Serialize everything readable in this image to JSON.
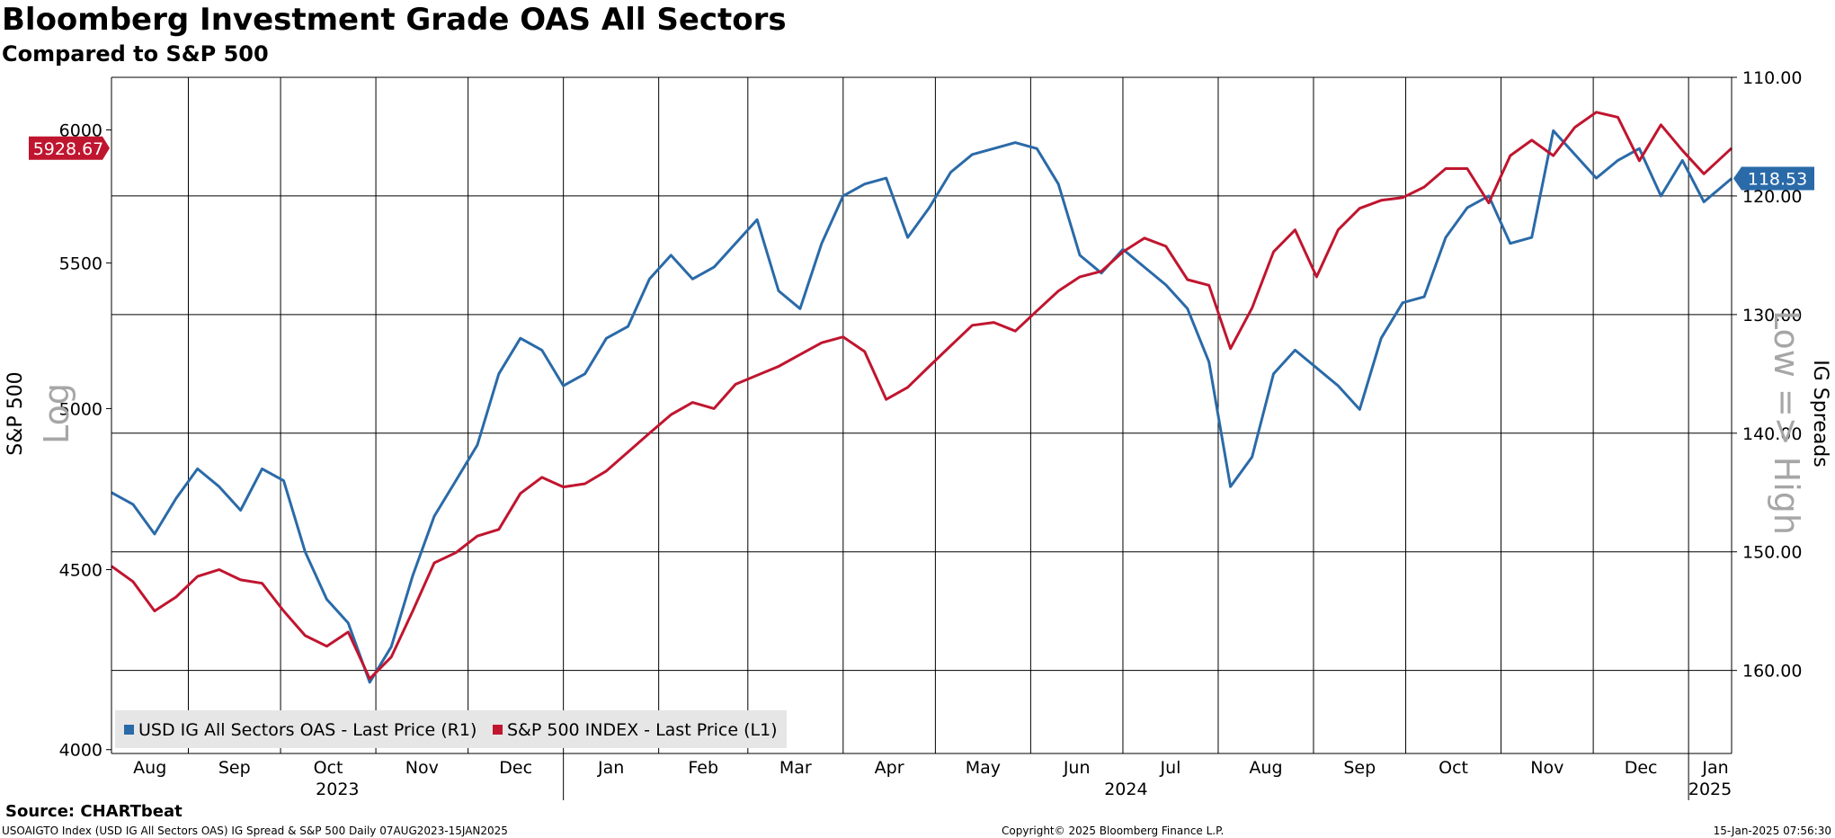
{
  "header": {
    "title": "Bloomberg Investment Grade OAS All Sectors",
    "subtitle": "Compared to S&P 500"
  },
  "footer": {
    "source": "Source: CHARTbeat",
    "description": "USOAIGTO Index (USD IG All Sectors OAS) IG Spread & S&P 500  Daily 07AUG2023-15JAN2025",
    "copyright": "Copyright© 2025 Bloomberg Finance L.P.",
    "timestamp": "15-Jan-2025 07:56:30"
  },
  "chart_data": {
    "type": "line",
    "title": "Bloomberg Investment Grade OAS All Sectors",
    "subtitle": "Compared to S&P 500",
    "x_range": [
      "2023-08-07",
      "2025-01-15"
    ],
    "x_month_labels": [
      "Aug",
      "Sep",
      "Oct",
      "Nov",
      "Dec",
      "Jan",
      "Feb",
      "Mar",
      "Apr",
      "May",
      "Jun",
      "Jul",
      "Aug",
      "Sep",
      "Oct",
      "Nov",
      "Dec",
      "Jan"
    ],
    "x_year_labels": [
      "2023",
      "2024",
      "2025"
    ],
    "left_axis": {
      "label": "S&P 500",
      "watermark": "Log",
      "scale": "log",
      "ticks": [
        "4000",
        "4500",
        "5000",
        "5500",
        "6000"
      ],
      "range": [
        3990,
        6210
      ]
    },
    "right_axis": {
      "label": "IG Spreads",
      "watermark": "Low => High",
      "inverted": true,
      "ticks": [
        "110.00",
        "120.00",
        "130.00",
        "140.00",
        "150.00",
        "160.00"
      ],
      "range": [
        110,
        167
      ]
    },
    "grid": true,
    "legend_position": "bottom-left",
    "series": [
      {
        "name": "USD IG All Sectors OAS - Last Price (R1)",
        "axis": "right",
        "color": "#2a6aa8",
        "last_value_label": "118.53",
        "points": [
          [
            "2023-08-07",
            145.0
          ],
          [
            "2023-08-14",
            146.0
          ],
          [
            "2023-08-21",
            148.5
          ],
          [
            "2023-08-28",
            145.5
          ],
          [
            "2023-09-04",
            143.0
          ],
          [
            "2023-09-11",
            144.5
          ],
          [
            "2023-09-18",
            146.5
          ],
          [
            "2023-09-25",
            143.0
          ],
          [
            "2023-10-02",
            144.0
          ],
          [
            "2023-10-09",
            150.0
          ],
          [
            "2023-10-16",
            154.0
          ],
          [
            "2023-10-23",
            156.0
          ],
          [
            "2023-10-30",
            161.0
          ],
          [
            "2023-11-06",
            158.0
          ],
          [
            "2023-11-13",
            152.0
          ],
          [
            "2023-11-20",
            147.0
          ],
          [
            "2023-11-27",
            144.0
          ],
          [
            "2023-12-04",
            141.0
          ],
          [
            "2023-12-11",
            135.0
          ],
          [
            "2023-12-18",
            132.0
          ],
          [
            "2023-12-25",
            133.0
          ],
          [
            "2024-01-01",
            136.0
          ],
          [
            "2024-01-08",
            135.0
          ],
          [
            "2024-01-15",
            132.0
          ],
          [
            "2024-01-22",
            131.0
          ],
          [
            "2024-01-29",
            127.0
          ],
          [
            "2024-02-05",
            125.0
          ],
          [
            "2024-02-12",
            127.0
          ],
          [
            "2024-02-19",
            126.0
          ],
          [
            "2024-02-26",
            124.0
          ],
          [
            "2024-03-04",
            122.0
          ],
          [
            "2024-03-11",
            128.0
          ],
          [
            "2024-03-18",
            129.5
          ],
          [
            "2024-03-25",
            124.0
          ],
          [
            "2024-04-01",
            120.0
          ],
          [
            "2024-04-08",
            119.0
          ],
          [
            "2024-04-15",
            118.5
          ],
          [
            "2024-04-22",
            123.5
          ],
          [
            "2024-04-29",
            121.0
          ],
          [
            "2024-05-06",
            118.0
          ],
          [
            "2024-05-13",
            116.5
          ],
          [
            "2024-05-20",
            116.0
          ],
          [
            "2024-05-27",
            115.5
          ],
          [
            "2024-06-03",
            116.0
          ],
          [
            "2024-06-10",
            119.0
          ],
          [
            "2024-06-17",
            125.0
          ],
          [
            "2024-06-24",
            126.5
          ],
          [
            "2024-07-01",
            124.5
          ],
          [
            "2024-07-08",
            126.0
          ],
          [
            "2024-07-15",
            127.5
          ],
          [
            "2024-07-22",
            129.5
          ],
          [
            "2024-07-29",
            134.0
          ],
          [
            "2024-08-05",
            144.5
          ],
          [
            "2024-08-12",
            142.0
          ],
          [
            "2024-08-19",
            135.0
          ],
          [
            "2024-08-26",
            133.0
          ],
          [
            "2024-09-02",
            134.5
          ],
          [
            "2024-09-09",
            136.0
          ],
          [
            "2024-09-16",
            138.0
          ],
          [
            "2024-09-23",
            132.0
          ],
          [
            "2024-09-30",
            129.0
          ],
          [
            "2024-10-07",
            128.5
          ],
          [
            "2024-10-14",
            123.5
          ],
          [
            "2024-10-21",
            121.0
          ],
          [
            "2024-10-28",
            120.0
          ],
          [
            "2024-11-04",
            124.0
          ],
          [
            "2024-11-11",
            123.5
          ],
          [
            "2024-11-18",
            114.5
          ],
          [
            "2024-11-25",
            116.5
          ],
          [
            "2024-12-02",
            118.5
          ],
          [
            "2024-12-09",
            117.0
          ],
          [
            "2024-12-16",
            116.0
          ],
          [
            "2024-12-23",
            120.0
          ],
          [
            "2024-12-30",
            117.0
          ],
          [
            "2025-01-06",
            120.5
          ],
          [
            "2025-01-15",
            118.53
          ]
        ]
      },
      {
        "name": "S&P 500 INDEX - Last Price (L1)",
        "axis": "left",
        "color": "#c0152f",
        "last_value_label": "5928.67",
        "points": [
          [
            "2023-08-07",
            4510
          ],
          [
            "2023-08-14",
            4465
          ],
          [
            "2023-08-21",
            4380
          ],
          [
            "2023-08-28",
            4420
          ],
          [
            "2023-09-04",
            4480
          ],
          [
            "2023-09-11",
            4500
          ],
          [
            "2023-09-18",
            4470
          ],
          [
            "2023-09-25",
            4460
          ],
          [
            "2023-10-02",
            4380
          ],
          [
            "2023-10-09",
            4310
          ],
          [
            "2023-10-16",
            4280
          ],
          [
            "2023-10-23",
            4320
          ],
          [
            "2023-10-30",
            4190
          ],
          [
            "2023-11-06",
            4250
          ],
          [
            "2023-11-13",
            4380
          ],
          [
            "2023-11-20",
            4520
          ],
          [
            "2023-11-27",
            4550
          ],
          [
            "2023-12-04",
            4600
          ],
          [
            "2023-12-11",
            4620
          ],
          [
            "2023-12-18",
            4730
          ],
          [
            "2023-12-25",
            4780
          ],
          [
            "2024-01-01",
            4750
          ],
          [
            "2024-01-08",
            4760
          ],
          [
            "2024-01-15",
            4800
          ],
          [
            "2024-01-22",
            4860
          ],
          [
            "2024-01-29",
            4920
          ],
          [
            "2024-02-05",
            4980
          ],
          [
            "2024-02-12",
            5020
          ],
          [
            "2024-02-19",
            5000
          ],
          [
            "2024-02-26",
            5080
          ],
          [
            "2024-03-04",
            5110
          ],
          [
            "2024-03-11",
            5140
          ],
          [
            "2024-03-18",
            5180
          ],
          [
            "2024-03-25",
            5220
          ],
          [
            "2024-04-01",
            5240
          ],
          [
            "2024-04-08",
            5190
          ],
          [
            "2024-04-15",
            5030
          ],
          [
            "2024-04-22",
            5070
          ],
          [
            "2024-04-29",
            5140
          ],
          [
            "2024-05-06",
            5210
          ],
          [
            "2024-05-13",
            5280
          ],
          [
            "2024-05-20",
            5290
          ],
          [
            "2024-05-27",
            5260
          ],
          [
            "2024-06-03",
            5330
          ],
          [
            "2024-06-10",
            5400
          ],
          [
            "2024-06-17",
            5450
          ],
          [
            "2024-06-24",
            5470
          ],
          [
            "2024-07-01",
            5540
          ],
          [
            "2024-07-08",
            5590
          ],
          [
            "2024-07-15",
            5560
          ],
          [
            "2024-07-22",
            5440
          ],
          [
            "2024-07-29",
            5420
          ],
          [
            "2024-08-05",
            5200
          ],
          [
            "2024-08-12",
            5340
          ],
          [
            "2024-08-19",
            5540
          ],
          [
            "2024-08-26",
            5620
          ],
          [
            "2024-09-02",
            5450
          ],
          [
            "2024-09-09",
            5620
          ],
          [
            "2024-09-16",
            5700
          ],
          [
            "2024-09-23",
            5730
          ],
          [
            "2024-09-30",
            5740
          ],
          [
            "2024-10-07",
            5780
          ],
          [
            "2024-10-14",
            5850
          ],
          [
            "2024-10-21",
            5850
          ],
          [
            "2024-10-28",
            5720
          ],
          [
            "2024-11-04",
            5900
          ],
          [
            "2024-11-11",
            5960
          ],
          [
            "2024-11-18",
            5900
          ],
          [
            "2024-11-25",
            6010
          ],
          [
            "2024-12-02",
            6070
          ],
          [
            "2024-12-09",
            6050
          ],
          [
            "2024-12-16",
            5880
          ],
          [
            "2024-12-23",
            6020
          ],
          [
            "2024-12-30",
            5920
          ],
          [
            "2025-01-06",
            5830
          ],
          [
            "2025-01-15",
            5928.67
          ]
        ]
      }
    ]
  }
}
